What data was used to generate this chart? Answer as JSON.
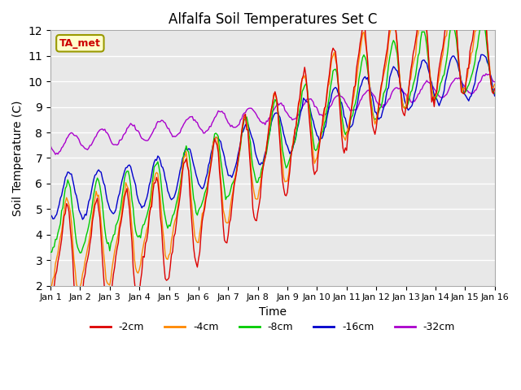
{
  "title": "Alfalfa Soil Temperatures Set C",
  "xlabel": "Time",
  "ylabel": "Soil Temperature (C)",
  "ylim": [
    2.0,
    12.0
  ],
  "yticks": [
    2.0,
    3.0,
    4.0,
    5.0,
    6.0,
    7.0,
    8.0,
    9.0,
    10.0,
    11.0,
    12.0
  ],
  "bg_color": "#e8e8e8",
  "annotation_text": "TA_met",
  "annotation_bg": "#ffffcc",
  "annotation_border": "#999900",
  "series_colors": {
    "-2cm": "#dd0000",
    "-4cm": "#ff8800",
    "-8cm": "#00cc00",
    "-16cm": "#0000cc",
    "-32cm": "#aa00cc"
  },
  "legend_labels": [
    "-2cm",
    "-4cm",
    "-8cm",
    "-16cm",
    "-32cm"
  ],
  "x_tick_labels": [
    "Jan 1",
    "Jan 2",
    "Jan 3",
    "Jan 4",
    "Jan 5",
    "Jan 6",
    "Jan 7",
    "Jan 8",
    "Jan 9",
    "Jan 10",
    "Jan 11",
    "Jan 12",
    "Jan 13",
    "Jan 14",
    "Jan 15",
    "Jan 16"
  ],
  "n_points": 361,
  "days": 15
}
